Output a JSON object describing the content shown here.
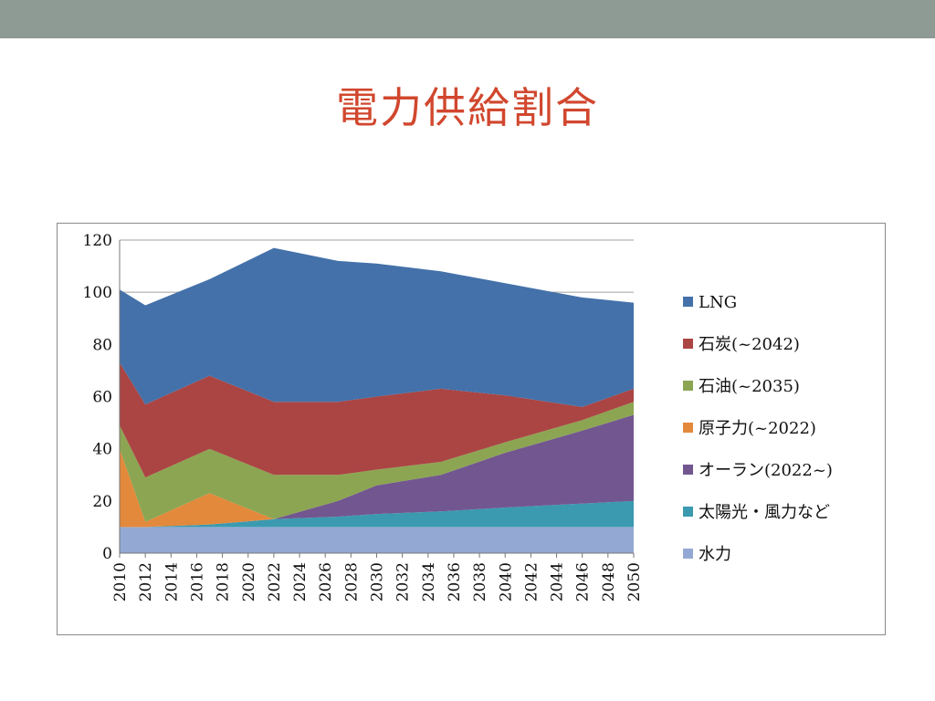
{
  "slide": {
    "title": "電力供給割合"
  },
  "chart_data": {
    "type": "area",
    "stacked": true,
    "x": [
      2010,
      2012,
      2017,
      2022,
      2027,
      2030,
      2035,
      2040,
      2046,
      2050
    ],
    "x_ticks": [
      "2010",
      "2012",
      "2014",
      "2016",
      "2018",
      "2020",
      "2022",
      "2024",
      "2026",
      "2028",
      "2030",
      "2032",
      "2034",
      "2036",
      "2038",
      "2040",
      "2042",
      "2044",
      "2046",
      "2048",
      "2050"
    ],
    "ylim": [
      0,
      120
    ],
    "y_ticks": [
      "0",
      "20",
      "40",
      "60",
      "80",
      "100",
      "120"
    ],
    "grid": "horizontal",
    "legend_position": "right",
    "series": [
      {
        "name": "水力",
        "color": "#93a9d3",
        "values": [
          10,
          10,
          10,
          10,
          10,
          10,
          10,
          10,
          10,
          10
        ]
      },
      {
        "name": "太陽光・風力など",
        "color": "#3b9ab0",
        "values": [
          0,
          0,
          1,
          3,
          4,
          5,
          6,
          7.5,
          9,
          10
        ]
      },
      {
        "name": "オーラン(2022~)",
        "color": "#725690",
        "values": [
          0,
          0,
          0,
          0,
          6,
          11,
          14,
          21,
          28,
          33
        ]
      },
      {
        "name": "原子力(~2022)",
        "color": "#e3893c",
        "values": [
          30,
          2,
          12,
          0,
          0,
          0,
          0,
          0,
          0,
          0
        ]
      },
      {
        "name": "石油(~2035)",
        "color": "#8ca552",
        "values": [
          9,
          17,
          17,
          17,
          10,
          6,
          5,
          4,
          4,
          5
        ]
      },
      {
        "name": "石炭(~2042)",
        "color": "#aa4544",
        "values": [
          24,
          28,
          28,
          28,
          28,
          28,
          28,
          18,
          5,
          5
        ]
      },
      {
        "name": "LNG",
        "color": "#4471a9",
        "values": [
          28,
          38,
          37,
          59,
          54,
          51,
          45,
          43,
          42,
          33
        ]
      }
    ]
  }
}
